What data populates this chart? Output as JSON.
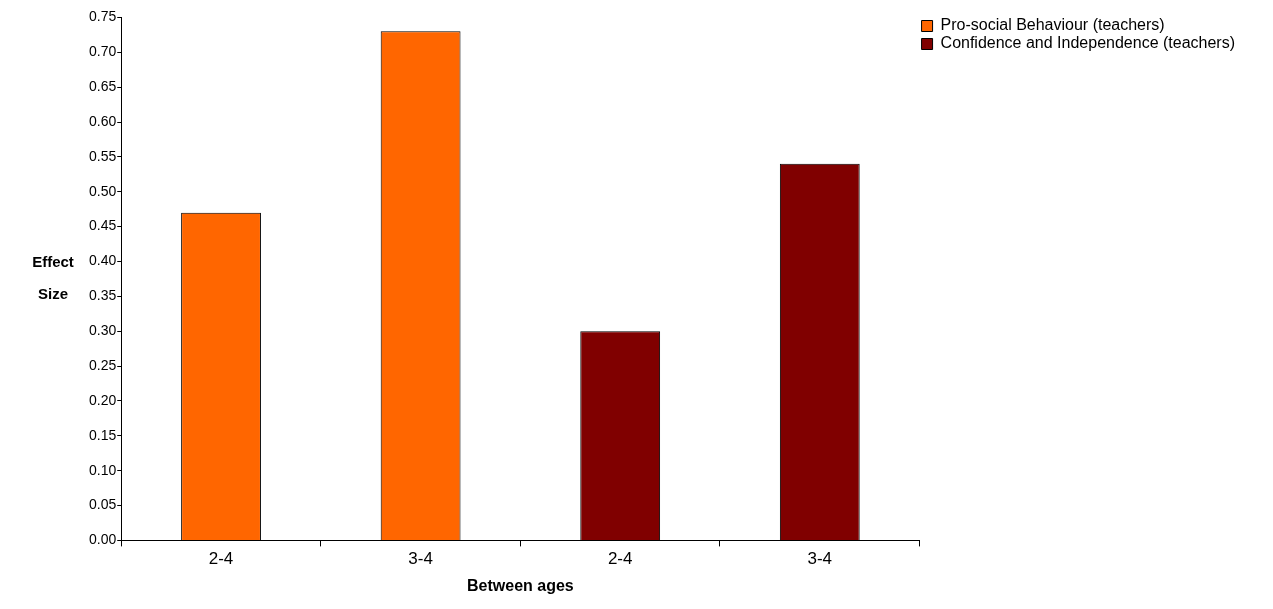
{
  "chart_data": {
    "type": "bar",
    "xlabel": "Between ages",
    "ylabel": "Effect Size",
    "categories": [
      "2-4",
      "3-4",
      "2-4",
      "3-4"
    ],
    "series": [
      {
        "name": "Pro-social Behaviour (teachers)",
        "color": "#ff6600",
        "values": [
          0.47,
          0.73,
          null,
          null
        ]
      },
      {
        "name": "Confidence and Independence (teachers)",
        "color": "#800000",
        "values": [
          null,
          null,
          0.3,
          0.54
        ]
      }
    ],
    "ylim": [
      0,
      0.75
    ],
    "yticks": [
      {
        "value": 0,
        "label": "0.00"
      },
      0.05,
      {
        "value": 0.1,
        "label": "0.10"
      },
      0.15,
      {
        "value": 0.2,
        "label": "0.20"
      },
      0.25,
      {
        "value": 0.3,
        "label": "0.30"
      },
      0.35,
      {
        "value": 0.4,
        "label": "0.40"
      },
      0.45,
      {
        "value": 0.5,
        "label": "0.50"
      },
      0.55,
      {
        "value": 0.6,
        "label": "0.60"
      },
      0.65,
      {
        "value": 0.7,
        "label": "0.70"
      },
      0.75
    ],
    "grid": false,
    "legend": "top right"
  }
}
